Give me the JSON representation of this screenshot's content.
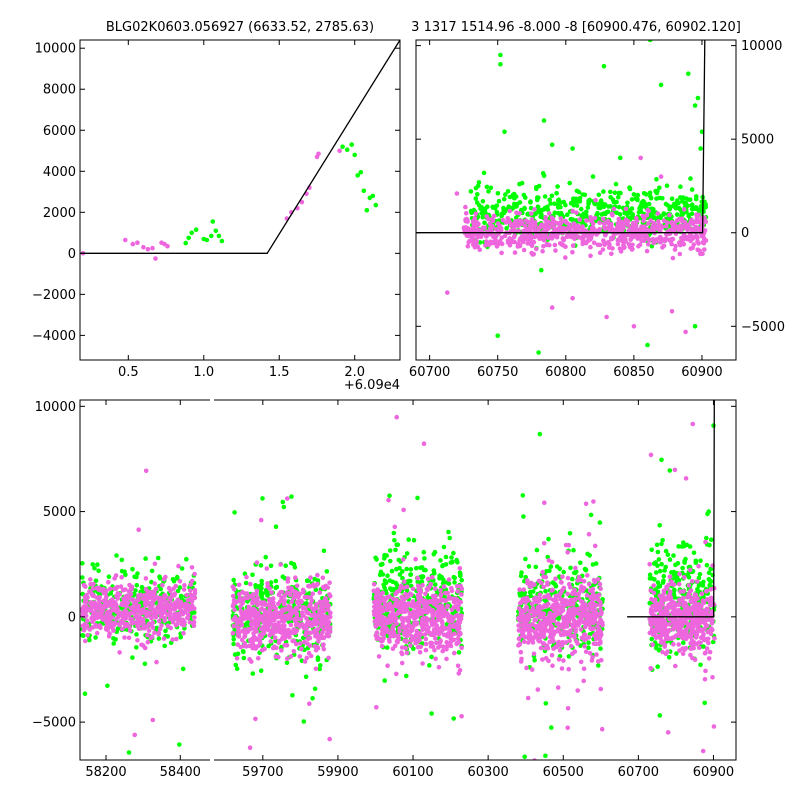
{
  "figure": {
    "title_left": "BLG02K0603.056927 (6633.52, 2785.63)",
    "title_right": "3 1317 1514.96 -8.000 -8 [60900.476, 60902.120]",
    "offset_label": "+6.09e4"
  },
  "colors": {
    "series_a": "#00ff00",
    "series_b": "#ee66dd",
    "model_line": "#000000"
  },
  "chart_data": [
    {
      "id": "zoom",
      "type": "scatter",
      "title": "BLG02K0603.056927 (6633.52, 2785.63)",
      "x_offset": 60900,
      "xlim": [
        0.18,
        2.3
      ],
      "ylim": [
        -5200,
        10400
      ],
      "xticks": [
        0.5,
        1.0,
        1.5,
        2.0
      ],
      "xtick_labels": [
        "0.5",
        "1.0",
        "1.5",
        "2.0"
      ],
      "yticks": [
        -4000,
        -2000,
        0,
        2000,
        4000,
        6000,
        8000,
        10000
      ],
      "ytick_labels": [
        "−4000",
        "−2000",
        "0",
        "2000",
        "4000",
        "6000",
        "8000",
        "10000"
      ],
      "ytick_side": "left",
      "model": [
        [
          0.18,
          0
        ],
        [
          1.42,
          0
        ],
        [
          2.3,
          10400
        ]
      ],
      "series": [
        {
          "name": "magenta",
          "points": [
            [
              0.2,
              0
            ],
            [
              0.48,
              650
            ],
            [
              0.53,
              450
            ],
            [
              0.56,
              520
            ],
            [
              0.6,
              300
            ],
            [
              0.63,
              200
            ],
            [
              0.66,
              250
            ],
            [
              0.68,
              -250
            ],
            [
              0.72,
              520
            ],
            [
              0.74,
              450
            ],
            [
              0.76,
              350
            ],
            [
              1.55,
              1700
            ],
            [
              1.58,
              2000
            ],
            [
              1.62,
              2200
            ],
            [
              1.65,
              2500
            ],
            [
              1.68,
              2900
            ],
            [
              1.7,
              3200
            ],
            [
              1.75,
              4700
            ],
            [
              1.76,
              4850
            ],
            [
              1.9,
              5000
            ]
          ]
        },
        {
          "name": "green",
          "points": [
            [
              0.88,
              500
            ],
            [
              0.9,
              750
            ],
            [
              0.92,
              1000
            ],
            [
              0.95,
              1150
            ],
            [
              1.0,
              700
            ],
            [
              1.02,
              650
            ],
            [
              1.05,
              850
            ],
            [
              1.06,
              1550
            ],
            [
              1.08,
              1100
            ],
            [
              1.1,
              850
            ],
            [
              1.12,
              600
            ],
            [
              1.92,
              5200
            ],
            [
              1.95,
              5050
            ],
            [
              1.98,
              5300
            ],
            [
              2.0,
              4800
            ],
            [
              2.02,
              3800
            ],
            [
              2.04,
              3950
            ],
            [
              2.06,
              3050
            ],
            [
              2.08,
              2100
            ],
            [
              2.1,
              2700
            ],
            [
              2.12,
              2800
            ],
            [
              2.14,
              2350
            ]
          ]
        }
      ]
    },
    {
      "id": "season",
      "type": "scatter",
      "title": "3 1317 1514.96 -8.000 -8 [60900.476, 60902.120]",
      "xlim": [
        60690,
        60925
      ],
      "ylim": [
        -6800,
        10300
      ],
      "xticks": [
        60700,
        60750,
        60800,
        60850,
        60900
      ],
      "xtick_labels": [
        "60700",
        "60750",
        "60800",
        "60850",
        "60900"
      ],
      "yticks": [
        -5000,
        0,
        5000,
        10000
      ],
      "ytick_labels": [
        "−5000",
        "0",
        "5000",
        "10000"
      ],
      "ytick_side": "right",
      "model": [
        [
          60690,
          0
        ],
        [
          60900.5,
          0
        ],
        [
          60902.1,
          10300
        ]
      ],
      "series": [
        {
          "name": "green",
          "cloud": {
            "x_range": [
              60730,
              60903
            ],
            "center": 1000,
            "spread": 700,
            "count": 560
          },
          "outliers": [
            [
              60752,
              9500
            ],
            [
              60752,
              9000
            ],
            [
              60784,
              6000
            ],
            [
              60790,
              4700
            ],
            [
              60805,
              4500
            ],
            [
              60820,
              3000
            ],
            [
              60828,
              8900
            ],
            [
              60840,
              4000
            ],
            [
              60862,
              10300
            ],
            [
              60870,
              7900
            ],
            [
              60890,
              8500
            ],
            [
              60895,
              6800
            ],
            [
              60897,
              7200
            ],
            [
              60899,
              4500
            ],
            [
              60900,
              5400
            ],
            [
              60755,
              5400
            ],
            [
              60740,
              3200
            ],
            [
              60782,
              -2000
            ],
            [
              60750,
              -5500
            ],
            [
              60780,
              -6400
            ],
            [
              60860,
              -6000
            ],
            [
              60895,
              -5000
            ]
          ]
        },
        {
          "name": "magenta",
          "cloud": {
            "x_range": [
              60725,
              60903
            ],
            "center": 0,
            "spread": 500,
            "count": 700
          },
          "outliers": [
            [
              60713,
              -3200
            ],
            [
              60720,
              2100
            ],
            [
              60790,
              -4000
            ],
            [
              60805,
              -3500
            ],
            [
              60830,
              -4500
            ],
            [
              60850,
              -5000
            ],
            [
              60855,
              4000
            ],
            [
              60878,
              -4200
            ],
            [
              60888,
              -5300
            ],
            [
              60870,
              3000
            ]
          ]
        }
      ]
    },
    {
      "id": "full",
      "type": "scatter",
      "xlim_segments": [
        [
          58130,
          58480
        ],
        [
          59570,
          60960
        ]
      ],
      "ylim": [
        -6800,
        10300
      ],
      "xticks": [
        58200,
        58400,
        59700,
        59900,
        60100,
        60300,
        60500,
        60700,
        60900
      ],
      "xtick_labels": [
        "58200",
        "58400",
        "59700",
        "59900",
        "60100",
        "60300",
        "60500",
        "60700",
        "60900"
      ],
      "yticks": [
        -5000,
        0,
        5000,
        10000
      ],
      "ytick_labels": [
        "−5000",
        "0",
        "5000",
        "10000"
      ],
      "ytick_side": "left",
      "model": [
        [
          60670,
          0
        ],
        [
          60900.5,
          0
        ],
        [
          60902.1,
          10300
        ]
      ],
      "clusters": [
        {
          "x_range": [
            58135,
            58440
          ],
          "green": {
            "center": 500,
            "spread": 900,
            "count": 320
          },
          "magenta": {
            "center": 300,
            "spread": 650,
            "count": 520
          }
        },
        {
          "x_range": [
            59620,
            59880
          ],
          "green": {
            "center": 200,
            "spread": 1100,
            "count": 340
          },
          "magenta": {
            "center": -100,
            "spread": 850,
            "count": 540
          }
        },
        {
          "x_range": [
            59995,
            60230
          ],
          "green": {
            "center": 700,
            "spread": 1200,
            "count": 360
          },
          "magenta": {
            "center": 0,
            "spread": 850,
            "count": 540
          }
        },
        {
          "x_range": [
            60380,
            60605
          ],
          "green": {
            "center": 500,
            "spread": 1100,
            "count": 320
          },
          "magenta": {
            "center": -100,
            "spread": 900,
            "count": 520
          }
        },
        {
          "x_range": [
            60730,
            60903
          ],
          "green": {
            "center": 900,
            "spread": 1300,
            "count": 300
          },
          "magenta": {
            "center": -50,
            "spread": 800,
            "count": 440
          }
        }
      ]
    }
  ]
}
